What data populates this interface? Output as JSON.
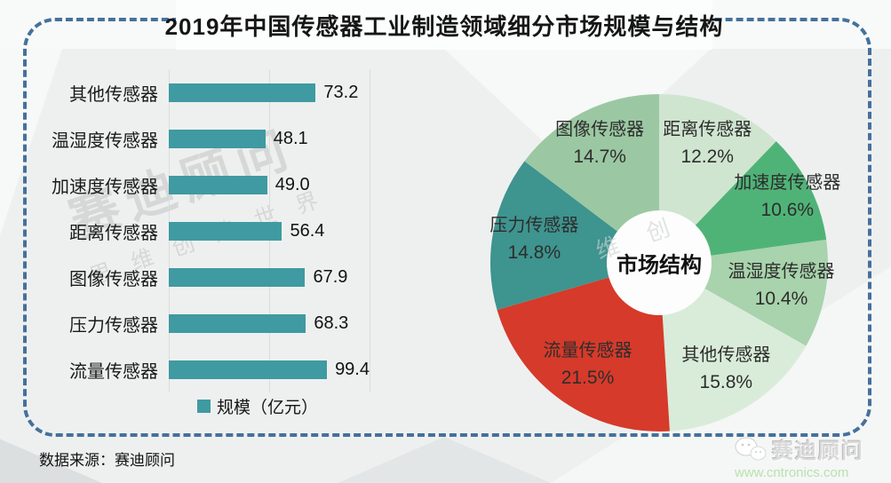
{
  "title": "2019年中国传感器工业制造领域细分市场规模与结构",
  "source": {
    "text": "数据来源：赛迪顾问"
  },
  "footer_logo": {
    "brand": "赛迪顾问",
    "url": "www.cntronics.com",
    "icon": "wechat-icon"
  },
  "watermark": {
    "line1": "赛迪顾问",
    "line2": "思维创造世界",
    "pie": "维创"
  },
  "colors": {
    "dash_border": "#44719b",
    "bar_teal": "#3f9aa1",
    "url_green": "#b7e3ad",
    "watermark_gray": "#c3c6c6",
    "background": "#eef0f0"
  },
  "chart_data": [
    {
      "type": "bar",
      "orientation": "horizontal",
      "categories": [
        "其他传感器",
        "温湿度传感器",
        "加速度传感器",
        "距离传感器",
        "图像传感器",
        "压力传感器",
        "流量传感器"
      ],
      "values": [
        73.2,
        48.1,
        49.0,
        56.4,
        67.9,
        68.3,
        99.4
      ],
      "legend": "规模（亿元）",
      "xlabel": "",
      "ylabel": "",
      "xlim": [
        0,
        100
      ],
      "gridlines": [
        0,
        50,
        100
      ],
      "bar_color": "#3f9aa1",
      "grid_on": true
    },
    {
      "type": "pie",
      "center_label": "市场结构",
      "donut_hole_ratio": 0.31,
      "start_angle_deg": 0,
      "direction": "clockwise",
      "slices": [
        {
          "label": "距离传感器",
          "pct": 12.2,
          "color": "#cfe5d0"
        },
        {
          "label": "加速度传感器",
          "pct": 10.6,
          "color": "#4fb377"
        },
        {
          "label": "温湿度传感器",
          "pct": 10.4,
          "color": "#a8d3ac"
        },
        {
          "label": "其他传感器",
          "pct": 15.8,
          "color": "#d9ecd9"
        },
        {
          "label": "流量传感器",
          "pct": 21.5,
          "color": "#d63a2a"
        },
        {
          "label": "压力传感器",
          "pct": 14.8,
          "color": "#3e948f"
        },
        {
          "label": "图像传感器",
          "pct": 14.7,
          "color": "#9bc8a2"
        }
      ]
    }
  ]
}
